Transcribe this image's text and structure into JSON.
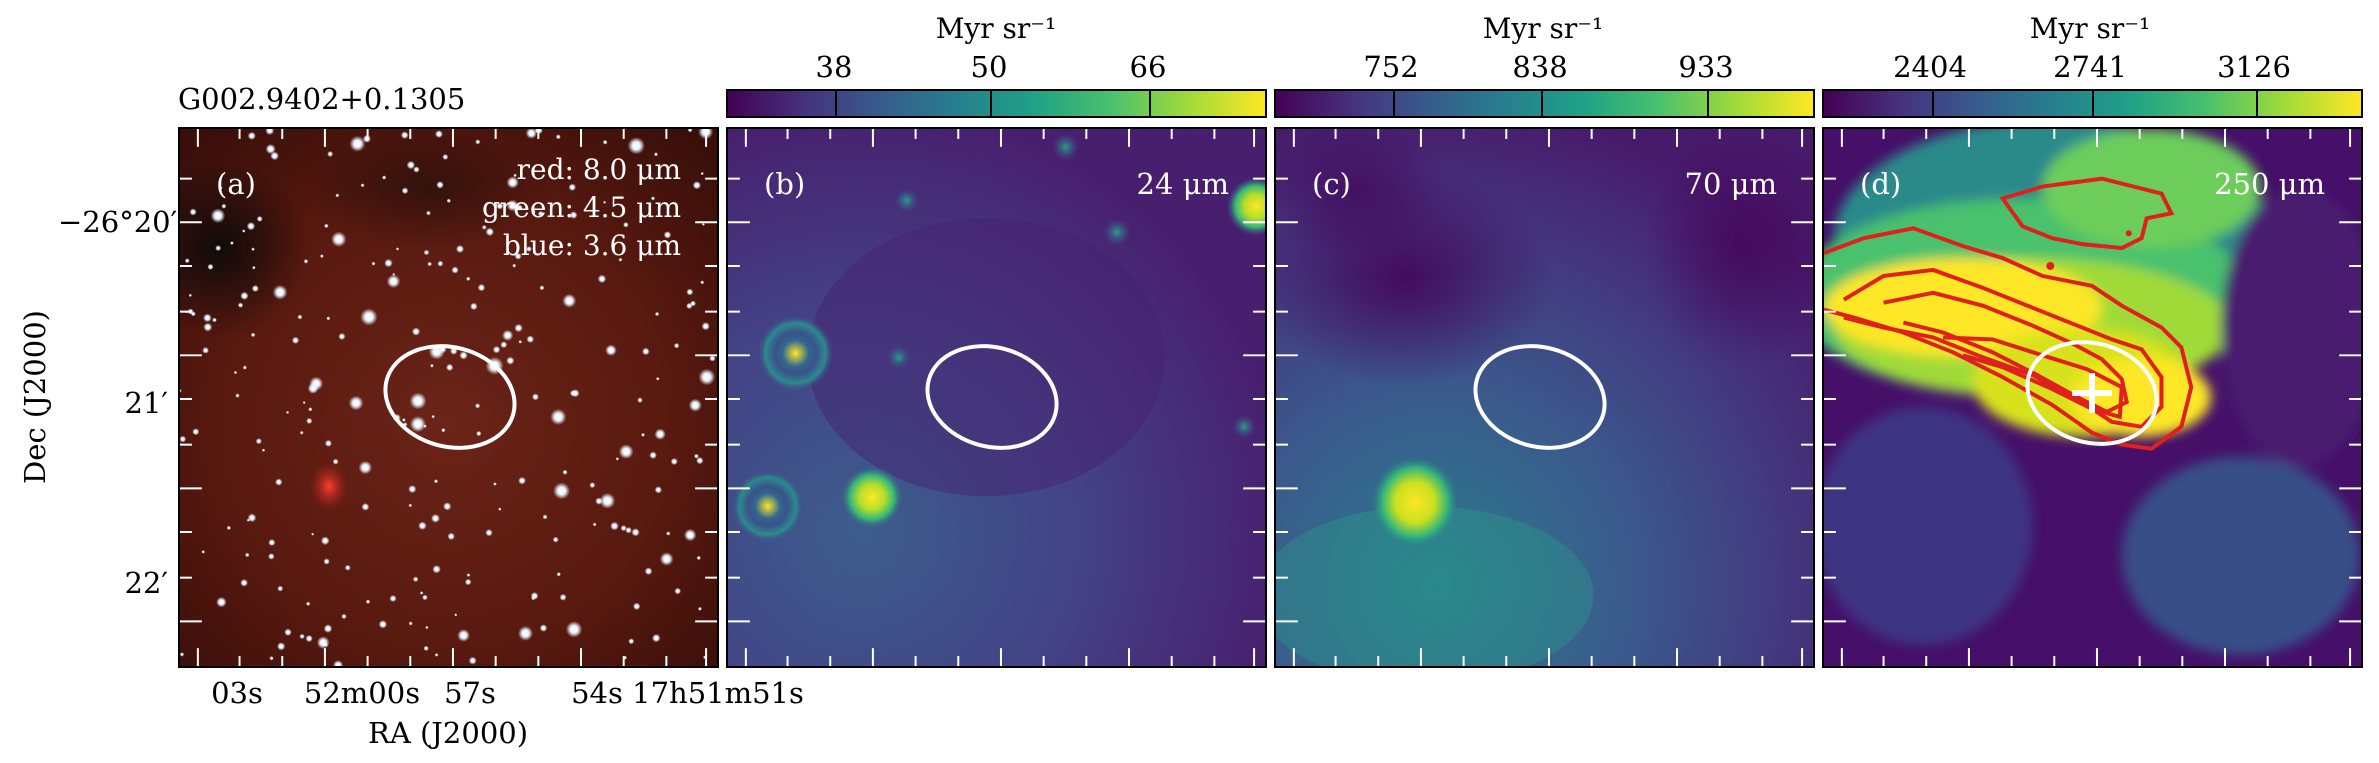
{
  "source_name": "G002.9402+0.1305",
  "axes": {
    "x_title": "RA (J2000)",
    "y_title": "Dec (J2000)",
    "x_ticks": [
      "03s",
      "52m00s",
      "57s",
      "54s",
      "17h51m51s"
    ],
    "y_ticks": [
      "−26°20′",
      "21′",
      "22′"
    ]
  },
  "panels": [
    {
      "id": "a",
      "label": "(a)",
      "rgb": [
        "red: 8.0 μm",
        "green: 4.5 μm",
        "blue: 3.6 μm"
      ],
      "colors": {
        "background": "#5a1a10",
        "stars": "#e8f4ff"
      }
    },
    {
      "id": "b",
      "label": "(b)",
      "wavelength": "24 μm",
      "colorbar": {
        "unit": "Myr sr⁻¹",
        "ticks": [
          "38",
          "50",
          "66"
        ]
      }
    },
    {
      "id": "c",
      "label": "(c)",
      "wavelength": "70 μm",
      "colorbar": {
        "unit": "Myr sr⁻¹",
        "ticks": [
          "752",
          "838",
          "933"
        ]
      }
    },
    {
      "id": "d",
      "label": "(d)",
      "wavelength": "250 μm",
      "colorbar": {
        "unit": "Myr sr⁻¹",
        "ticks": [
          "2404",
          "2741",
          "3126"
        ]
      },
      "contour_color": "#e0201c",
      "marker": "+"
    }
  ],
  "colormap": [
    "#440154",
    "#3b528b",
    "#21918c",
    "#5ec962",
    "#fde725"
  ]
}
